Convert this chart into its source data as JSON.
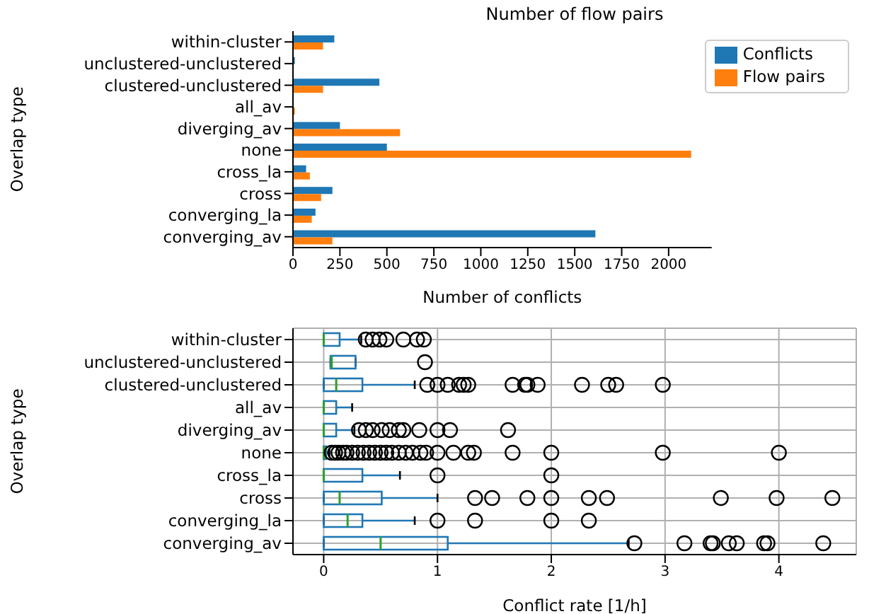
{
  "chart_data": [
    {
      "type": "bar",
      "orientation": "horizontal",
      "title": "Number of flow pairs",
      "xlabel": "Number of conflicts",
      "ylabel": "Overlap type",
      "categories": [
        "within-cluster",
        "unclustered-unclustered",
        "clustered-unclustered",
        "all_av",
        "diverging_av",
        "none",
        "cross_la",
        "cross",
        "converging_la",
        "converging_av"
      ],
      "series": [
        {
          "name": "Conflicts",
          "color": "#1f77b4",
          "values": [
            220,
            10,
            460,
            0,
            250,
            500,
            70,
            210,
            120,
            1610
          ]
        },
        {
          "name": "Flow pairs",
          "color": "#ff7f0e",
          "values": [
            160,
            0,
            160,
            10,
            570,
            2120,
            90,
            150,
            100,
            210
          ]
        }
      ],
      "xlim": [
        0,
        2229
      ],
      "xticks": [
        0,
        250,
        500,
        750,
        1000,
        1250,
        1500,
        1750,
        2000
      ],
      "legend": "top right",
      "grid": false
    },
    {
      "type": "box",
      "orientation": "horizontal",
      "xlabel": "Conflict rate [1/h]",
      "ylabel": "Overlap type",
      "categories": [
        "within-cluster",
        "unclustered-unclustered",
        "clustered-unclustered",
        "all_av",
        "diverging_av",
        "none",
        "cross_la",
        "cross",
        "converging_la",
        "converging_av"
      ],
      "boxes": [
        {
          "low": 0,
          "q1": 0,
          "median": 0,
          "q3": 0.14,
          "high": 0.33,
          "outliers": [
            0.37,
            0.43,
            0.49,
            0.55,
            0.7,
            0.82,
            0.88
          ]
        },
        {
          "low": 0.06,
          "q1": 0.06,
          "median": 0.07,
          "q3": 0.28,
          "high": 0.28,
          "outliers": [
            0.89
          ]
        },
        {
          "low": 0,
          "q1": 0,
          "median": 0.11,
          "q3": 0.34,
          "high": 0.8,
          "outliers": [
            0.91,
            1.0,
            1.09,
            1.19,
            1.23,
            1.27,
            1.66,
            1.77,
            1.79,
            1.88,
            2.27,
            2.5,
            2.57,
            2.98
          ]
        },
        {
          "low": 0,
          "q1": 0,
          "median": 0,
          "q3": 0.11,
          "high": 0.25
        },
        {
          "low": 0,
          "q1": 0,
          "median": 0,
          "q3": 0.11,
          "high": 0.27,
          "outliers": [
            0.31,
            0.37,
            0.43,
            0.51,
            0.58,
            0.66,
            0.7,
            0.84,
            1.0,
            1.11,
            1.62
          ]
        },
        {
          "low": 0,
          "q1": 0,
          "median": 0,
          "q3": 0.02,
          "high": 0.05,
          "outliers": [
            0.07,
            0.1,
            0.13,
            0.17,
            0.2,
            0.25,
            0.3,
            0.35,
            0.4,
            0.45,
            0.5,
            0.55,
            0.6,
            0.66,
            0.72,
            0.78,
            0.85,
            0.9,
            1.0,
            1.14,
            1.27,
            1.32,
            1.66,
            2.0,
            2.98,
            4.0
          ]
        },
        {
          "low": 0,
          "q1": 0,
          "median": 0,
          "q3": 0.34,
          "high": 0.67,
          "outliers": [
            1.0,
            2.0
          ]
        },
        {
          "low": 0,
          "q1": 0,
          "median": 0.14,
          "q3": 0.51,
          "high": 1.0,
          "outliers": [
            1.33,
            1.48,
            1.79,
            2.0,
            2.33,
            2.49,
            3.49,
            3.98,
            4.47
          ]
        },
        {
          "low": 0,
          "q1": 0,
          "median": 0.21,
          "q3": 0.34,
          "high": 0.8,
          "outliers": [
            1.0,
            1.33,
            2.0,
            2.33
          ]
        },
        {
          "low": 0,
          "q1": 0,
          "median": 0.5,
          "q3": 1.09,
          "high": 2.68,
          "outliers": [
            2.73,
            3.17,
            3.4,
            3.42,
            3.56,
            3.63,
            3.87,
            3.9,
            4.39
          ]
        }
      ],
      "xlim": [
        -0.27,
        4.68
      ],
      "xticks": [
        0,
        1,
        2,
        3,
        4
      ],
      "grid": true
    }
  ]
}
